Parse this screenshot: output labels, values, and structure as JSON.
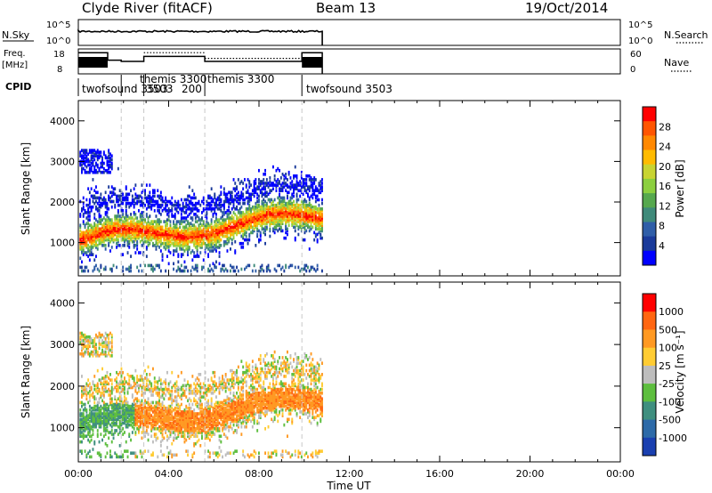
{
  "header": {
    "station": "Clyde River (fitACF)",
    "beam": "Beam 13",
    "date": "19/Oct/2014"
  },
  "labels": {
    "nsky": "N.Sky",
    "freq_line1": "Freq.",
    "freq_line2": "[MHz]",
    "cpid": "CPID",
    "nsearch": "N.Search",
    "nave": "Nave"
  },
  "chart_data": [
    {
      "type": "line",
      "panel": "noise",
      "y_left_ticks": [
        "10^5",
        "10^0"
      ],
      "y_right_ticks": [
        "10^5",
        "10^0"
      ],
      "xlim": [
        0,
        24
      ],
      "x_data_end": 10.8,
      "noise_level_fraction": 0.25
    },
    {
      "type": "line",
      "panel": "frequency",
      "y_left_ticks": [
        "18",
        "8"
      ],
      "y_right_ticks": [
        "60",
        "0"
      ],
      "xlim": [
        0,
        24
      ],
      "freq_segments": [
        {
          "x0": 0.0,
          "x1": 1.3,
          "level": 0.15
        },
        {
          "x0": 1.3,
          "x1": 1.9,
          "level": 0.45
        },
        {
          "x0": 1.9,
          "x1": 2.9,
          "level": 0.5
        },
        {
          "x0": 2.9,
          "x1": 5.6,
          "level": 0.3
        },
        {
          "x0": 5.6,
          "x1": 9.9,
          "level": 0.5
        },
        {
          "x0": 9.9,
          "x1": 10.8,
          "level": 0.15
        }
      ],
      "nave_segments": [
        {
          "x0": 2.9,
          "x1": 5.6,
          "level": 0.15
        },
        {
          "x0": 5.6,
          "x1": 9.9,
          "level": 0.38
        }
      ]
    },
    {
      "type": "table",
      "panel": "cpid",
      "entries": [
        {
          "x": 0.0,
          "label": "twofsound 3503"
        },
        {
          "x": 1.9,
          "label": "themis 3300"
        },
        {
          "x": 2.9,
          "label": "3503"
        },
        {
          "x": 3.3,
          "label": "200"
        },
        {
          "x": 5.6,
          "label": "themis 3300"
        },
        {
          "x": 9.9,
          "label": "twofsound 3503"
        }
      ],
      "boundaries": [
        1.9,
        2.9,
        5.6,
        9.9
      ]
    },
    {
      "type": "heatmap",
      "panel": "power",
      "ylabel": "Slant Range [km]",
      "xlim": [
        0,
        24
      ],
      "ylim": [
        180,
        4500
      ],
      "yticks": [
        1000,
        2000,
        3000,
        4000
      ],
      "colorbar_label": "Power [dB]",
      "colorbar_ticks": [
        "28",
        "24",
        "20",
        "16",
        "12",
        "8",
        "4"
      ],
      "colors": [
        "#0000ff",
        "#1a3a9a",
        "#2f5ea8",
        "#3f8a7a",
        "#56a84e",
        "#8ccf3f",
        "#c8d432",
        "#ffbb00",
        "#ff8800",
        "#ff5500",
        "#ff0000"
      ]
    },
    {
      "type": "heatmap",
      "panel": "velocity",
      "ylabel": "Slant Range [km]",
      "xlabel": "Time UT",
      "xlim": [
        0,
        24
      ],
      "ylim": [
        180,
        4500
      ],
      "yticks": [
        1000,
        2000,
        3000,
        4000
      ],
      "xticks": [
        "00:00",
        "04:00",
        "08:00",
        "12:00",
        "16:00",
        "20:00",
        "00:00"
      ],
      "colorbar_label": "Velocity [m s⁻¹]",
      "colorbar_ticks": [
        "1000",
        "500",
        "100",
        "25",
        "-25",
        "-100",
        "-500",
        "-1000"
      ],
      "colors": [
        "#1a40b0",
        "#2d6aa8",
        "#3f8f7f",
        "#5dbe3e",
        "#bdbdbd",
        "#ffcc33",
        "#ff9922",
        "#ff6611",
        "#ff0000"
      ]
    }
  ]
}
